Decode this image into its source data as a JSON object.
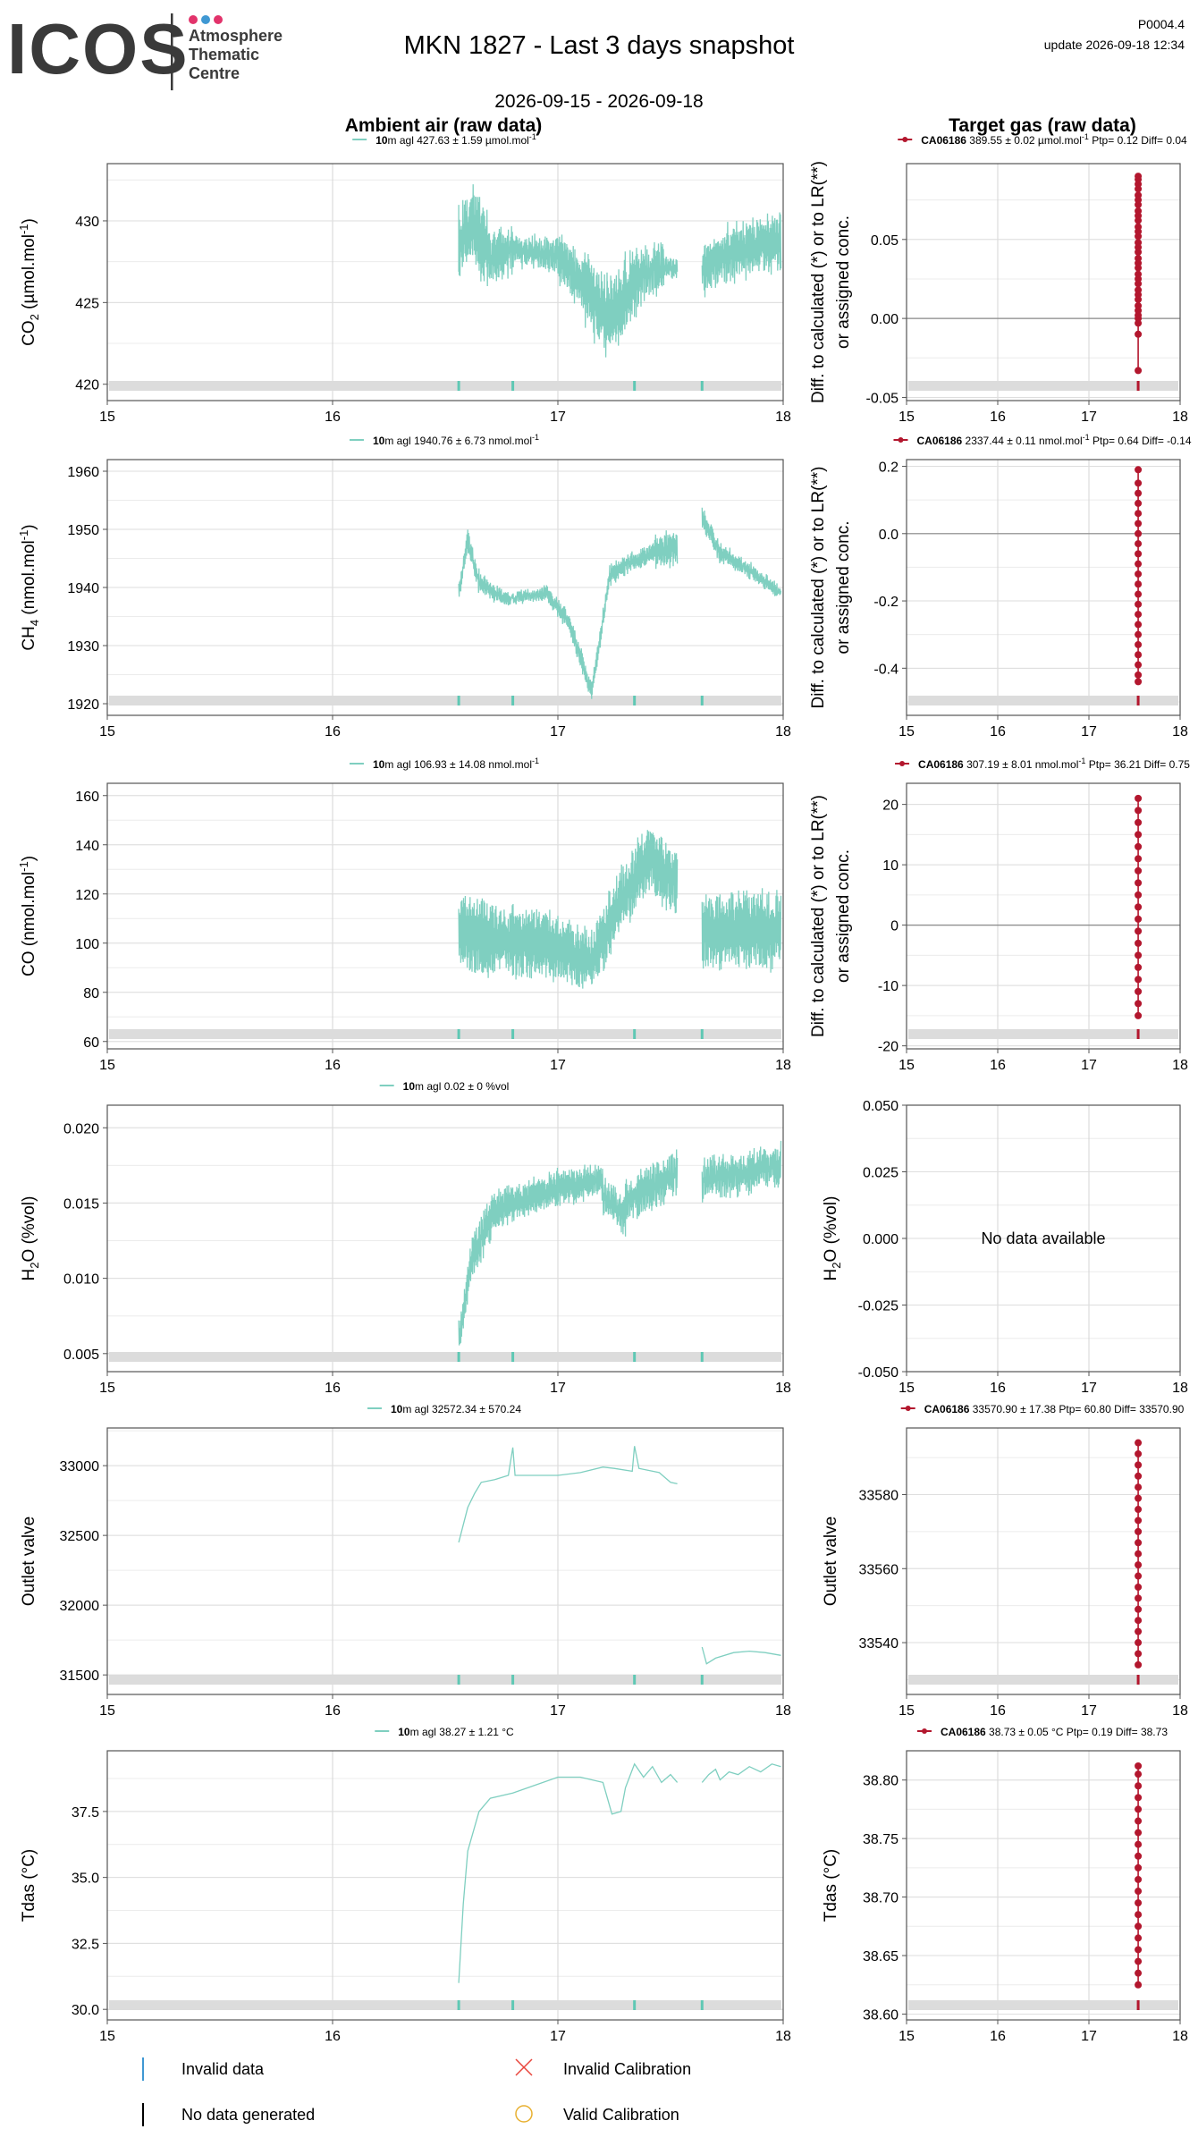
{
  "header": {
    "logo_text": "ICOS",
    "logo_subtitle": [
      "Atmosphere",
      "Thematic",
      "Centre"
    ],
    "title": "MKN 1827 - Last 3 days snapshot",
    "date_range": "2026-09-15 - 2026-09-18",
    "code": "P0004.4",
    "update": "update  2026-09-18 12:34"
  },
  "columns": {
    "left_title": "Ambient air (raw data)",
    "right_title": "Target gas (raw data)"
  },
  "colors": {
    "ambient": "#7fcfc0",
    "target": "#b3172e",
    "invalid_band": "#dcdcdc",
    "invalid_tick": "#5fc8b4",
    "invalid_calibration": "#e8453c",
    "valid_calibration": "#e8b030"
  },
  "x_axis": {
    "range": [
      15,
      18
    ],
    "ticks": [
      "15",
      "16",
      "17",
      "18"
    ]
  },
  "chart_data": [
    {
      "id": "co2-ambient",
      "type": "line",
      "ylabel": "CO2 (µmol.mol-1)",
      "ylabel_parts": [
        "CO",
        "2",
        " (µmol.mol",
        "-1",
        ")"
      ],
      "legend": {
        "bold": "10",
        "text": "m agl 427.63 ± 1.59 µmol.mol",
        "sup": "-1"
      },
      "ylim": [
        419.0,
        433.5
      ],
      "yticks": [
        420,
        425,
        430
      ],
      "ytick_labels": [
        "420",
        "425",
        "430"
      ],
      "segments": [
        [
          16.56,
          16.56,
          427.5,
          429.2,
          2.0,
          0.5,
          3
        ],
        [
          16.56,
          16.62,
          428.5,
          430.0,
          2.0,
          0.5,
          11
        ],
        [
          16.62,
          16.7,
          430.0,
          427.8,
          2.3,
          0.5,
          27
        ],
        [
          16.7,
          16.8,
          427.8,
          428.2,
          1.4,
          0.5,
          43
        ],
        [
          16.8,
          17.0,
          428.2,
          427.9,
          0.9,
          0.3,
          95
        ],
        [
          17.0,
          17.12,
          427.9,
          426.0,
          1.6,
          0.4,
          57
        ],
        [
          17.12,
          17.22,
          426.0,
          424.0,
          2.4,
          0.5,
          61
        ],
        [
          17.22,
          17.36,
          424.0,
          426.5,
          2.3,
          0.5,
          51
        ],
        [
          17.36,
          17.47,
          426.5,
          427.2,
          1.4,
          0.6,
          13
        ],
        [
          17.47,
          17.53,
          427.2,
          427.1,
          0.6,
          0.2,
          7
        ],
        [
          17.64,
          17.75,
          427.0,
          428.0,
          1.6,
          0.4,
          23
        ],
        [
          17.75,
          17.99,
          428.0,
          428.8,
          1.7,
          0.4,
          1
        ]
      ],
      "invalid_ticks": [
        16.56,
        16.8,
        17.34,
        17.64
      ]
    },
    {
      "id": "co2-target",
      "type": "scatter",
      "ylabel_lines": [
        "Diff. to calculated (*) or to LR(**)",
        "or assigned conc."
      ],
      "legend": {
        "bold": "CA06186",
        "text": " 389.55 ± 0.02 µmol.mol",
        "sup": "-1",
        "text2": " Ptp= 0.12 Diff= 0.04"
      },
      "ylim": [
        -0.052,
        0.098
      ],
      "yticks": [
        -0.05,
        0.0,
        0.05
      ],
      "ytick_labels": [
        "-0.05",
        "0.00",
        "0.05"
      ],
      "x": 17.54,
      "y_values": [
        -0.033,
        -0.01,
        -0.003,
        0.0,
        0.002,
        0.005,
        0.008,
        0.012,
        0.015,
        0.018,
        0.022,
        0.025,
        0.028,
        0.032,
        0.035,
        0.038,
        0.042,
        0.045,
        0.048,
        0.052,
        0.055,
        0.058,
        0.062,
        0.065,
        0.068,
        0.072,
        0.075,
        0.078,
        0.082,
        0.085,
        0.088,
        0.09
      ],
      "zero_line": true,
      "invalid_ticks": [
        17.54
      ]
    },
    {
      "id": "ch4-ambient",
      "type": "line",
      "ylabel": "CH4 (nmol.mol-1)",
      "ylabel_parts": [
        "CH",
        "4",
        " (nmol.mol",
        "-1",
        ")"
      ],
      "legend": {
        "bold": "10",
        "text": "m agl 1940.76 ± 6.73 nmol.mol",
        "sup": "-1"
      },
      "ylim": [
        1918.0,
        1962.0
      ],
      "yticks": [
        1920,
        1930,
        1940,
        1950,
        1960
      ],
      "ytick_labels": [
        "1920",
        "1930",
        "1940",
        "1950",
        "1960"
      ],
      "segments": [
        [
          16.56,
          16.6,
          1939.0,
          1948.0,
          1.6,
          0.5,
          5
        ],
        [
          16.6,
          16.65,
          1948.0,
          1941.0,
          1.8,
          0.6,
          9
        ],
        [
          16.65,
          16.72,
          1941.0,
          1939.0,
          1.4,
          0.5,
          15
        ],
        [
          16.72,
          16.78,
          1939.0,
          1938.0,
          1.2,
          0.4,
          19
        ],
        [
          16.78,
          16.95,
          1938.0,
          1939.0,
          1.0,
          0.5,
          31
        ],
        [
          16.95,
          17.05,
          1939.0,
          1934.0,
          1.4,
          0.5,
          37
        ],
        [
          17.05,
          17.15,
          1934.0,
          1922.0,
          1.6,
          0.5,
          43
        ],
        [
          17.15,
          17.23,
          1922.0,
          1942.0,
          1.8,
          0.5,
          49
        ],
        [
          17.23,
          17.3,
          1942.0,
          1944.0,
          1.6,
          0.5,
          55
        ],
        [
          17.3,
          17.43,
          1944.0,
          1946.0,
          1.4,
          0.5,
          61
        ],
        [
          17.43,
          17.53,
          1946.0,
          1947.0,
          3.0,
          0.8,
          67
        ],
        [
          17.64,
          17.72,
          1952.0,
          1946.0,
          1.6,
          0.6,
          73
        ],
        [
          17.72,
          17.85,
          1946.0,
          1943.0,
          1.4,
          0.5,
          79
        ],
        [
          17.85,
          17.99,
          1943.0,
          1939.0,
          1.2,
          0.5,
          85
        ]
      ],
      "invalid_ticks": [
        16.56,
        16.8,
        17.34,
        17.64
      ]
    },
    {
      "id": "ch4-target",
      "type": "scatter",
      "ylabel_lines": [
        "Diff. to calculated (*) or to LR(**)",
        "or assigned conc."
      ],
      "legend": {
        "bold": "CA06186",
        "text": " 2337.44 ± 0.11 nmol.mol",
        "sup": "-1",
        "text2": " Ptp= 0.64 Diff= -0.14"
      },
      "ylim": [
        -0.54,
        0.22
      ],
      "yticks": [
        -0.4,
        -0.2,
        0.0,
        0.2
      ],
      "ytick_labels": [
        "-0.4",
        "-0.2",
        "0.0",
        "0.2"
      ],
      "x": 17.54,
      "y_values": [
        -0.44,
        -0.42,
        -0.39,
        -0.36,
        -0.33,
        -0.3,
        -0.27,
        -0.24,
        -0.21,
        -0.18,
        -0.15,
        -0.12,
        -0.09,
        -0.06,
        -0.03,
        0.0,
        0.03,
        0.06,
        0.09,
        0.12,
        0.15,
        0.19
      ],
      "zero_line": true,
      "invalid_ticks": [
        17.54
      ]
    },
    {
      "id": "co-ambient",
      "type": "line",
      "ylabel": "CO (nmol.mol-1)",
      "ylabel_parts": [
        "CO",
        "",
        " (nmol.mol",
        "-1",
        ")"
      ],
      "legend": {
        "bold": "10",
        "text": "m agl 106.93 ± 14.08 nmol.mol",
        "sup": "-1"
      },
      "ylim": [
        57.0,
        165.0
      ],
      "yticks": [
        60,
        80,
        100,
        120,
        140,
        160
      ],
      "ytick_labels": [
        "60",
        "80",
        "100",
        "120",
        "140",
        "160"
      ],
      "segments": [
        [
          16.56,
          16.7,
          104.0,
          102.0,
          16.0,
          2.0,
          5
        ],
        [
          16.7,
          17.0,
          102.0,
          98.0,
          14.0,
          2.0,
          9
        ],
        [
          17.0,
          17.15,
          98.0,
          92.0,
          12.0,
          2.0,
          15
        ],
        [
          17.15,
          17.25,
          92.0,
          112.0,
          13.0,
          2.0,
          19
        ],
        [
          17.25,
          17.4,
          112.0,
          135.0,
          13.0,
          3.0,
          31
        ],
        [
          17.4,
          17.53,
          135.0,
          125.0,
          14.0,
          3.0,
          37
        ],
        [
          17.64,
          17.99,
          105.0,
          105.0,
          16.0,
          2.0,
          43
        ]
      ],
      "invalid_ticks": [
        16.56,
        16.8,
        17.34,
        17.64
      ]
    },
    {
      "id": "co-target",
      "type": "scatter",
      "ylabel_lines": [
        "Diff. to calculated (*) or to LR(**)",
        "or assigned conc."
      ],
      "legend": {
        "bold": "CA06186",
        "text": " 307.19 ± 8.01 nmol.mol",
        "sup": "-1",
        "text2": " Ptp= 36.21 Diff= 0.75"
      },
      "ylim": [
        -20.5,
        23.5
      ],
      "yticks": [
        -20,
        -10,
        0,
        10,
        20
      ],
      "ytick_labels": [
        "-20",
        "-10",
        "0",
        "10",
        "20"
      ],
      "x": 17.54,
      "y_values": [
        -15.0,
        -13.0,
        -11.0,
        -9.0,
        -7.0,
        -5.0,
        -3.0,
        -1.0,
        1.0,
        3.0,
        5.0,
        7.0,
        9.0,
        11.0,
        13.0,
        15.0,
        17.0,
        19.0,
        21.0
      ],
      "zero_line": true,
      "invalid_ticks": [
        17.54
      ]
    },
    {
      "id": "h2o-ambient",
      "type": "line",
      "ylabel": "H2O (%vol)",
      "ylabel_parts": [
        "H",
        "2",
        "O (%vol)",
        "",
        ""
      ],
      "legend": {
        "bold": "10",
        "text": "m agl 0.02 ± 0 %vol",
        "sup": ""
      },
      "ylim": [
        0.0038,
        0.0215
      ],
      "yticks": [
        0.005,
        0.01,
        0.015,
        0.02
      ],
      "ytick_labels": [
        "0.005",
        "0.010",
        "0.015",
        "0.020"
      ],
      "segments": [
        [
          16.56,
          16.62,
          0.006,
          0.0115,
          0.0012,
          0.0003,
          3
        ],
        [
          16.62,
          16.72,
          0.0115,
          0.0145,
          0.0014,
          0.0003,
          11
        ],
        [
          16.72,
          17.0,
          0.0145,
          0.016,
          0.0012,
          0.0003,
          27
        ],
        [
          17.0,
          17.2,
          0.016,
          0.0165,
          0.0011,
          0.0003,
          43
        ],
        [
          17.2,
          17.3,
          0.0155,
          0.014,
          0.0012,
          0.0003,
          95
        ],
        [
          17.3,
          17.53,
          0.015,
          0.017,
          0.0014,
          0.0004,
          57
        ],
        [
          17.64,
          17.99,
          0.0165,
          0.0175,
          0.0013,
          0.0004,
          61
        ]
      ],
      "invalid_ticks": [
        16.56,
        16.8,
        17.34,
        17.64
      ]
    },
    {
      "id": "h2o-target",
      "type": "empty",
      "ylabel_parts": [
        "H",
        "2",
        "O (%vol)",
        "",
        ""
      ],
      "message": "No data available",
      "ylim": [
        -0.05,
        0.05
      ],
      "yticks": [
        -0.05,
        -0.025,
        0.0,
        0.025,
        0.05
      ],
      "ytick_labels": [
        "-0.050",
        "-0.025",
        "0.000",
        "0.025",
        "0.050"
      ]
    },
    {
      "id": "outlet-ambient",
      "type": "line",
      "ylabel": "Outlet valve",
      "legend": {
        "bold": "10",
        "text": "m agl 32572.34 ± 570.24",
        "sup": ""
      },
      "ylim": [
        31360.0,
        33270.0
      ],
      "yticks": [
        31500,
        32000,
        32500,
        33000
      ],
      "ytick_labels": [
        "31500",
        "32000",
        "32500",
        "33000"
      ],
      "points": [
        [
          16.56,
          32450
        ],
        [
          16.6,
          32700
        ],
        [
          16.63,
          32800
        ],
        [
          16.66,
          32880
        ],
        [
          16.72,
          32900
        ],
        [
          16.78,
          32930
        ],
        [
          16.8,
          33130
        ],
        [
          16.81,
          32930
        ],
        [
          16.9,
          32930
        ],
        [
          17.0,
          32930
        ],
        [
          17.1,
          32950
        ],
        [
          17.2,
          32990
        ],
        [
          17.25,
          32980
        ],
        [
          17.33,
          32960
        ],
        [
          17.34,
          33140
        ],
        [
          17.36,
          32980
        ],
        [
          17.45,
          32950
        ],
        [
          17.5,
          32880
        ],
        [
          17.53,
          32870
        ],
        [
          null,
          null
        ],
        [
          17.64,
          31700
        ],
        [
          17.66,
          31580
        ],
        [
          17.7,
          31620
        ],
        [
          17.78,
          31660
        ],
        [
          17.85,
          31670
        ],
        [
          17.92,
          31660
        ],
        [
          17.99,
          31640
        ]
      ],
      "invalid_ticks": [
        16.56,
        16.8,
        17.34,
        17.64
      ]
    },
    {
      "id": "outlet-target",
      "type": "scatter",
      "ylabel": "Outlet valve",
      "legend": {
        "bold": "CA06186",
        "text": " 33570.90 ± 17.38  Ptp= 60.80 Diff= 33570.90",
        "sup": "",
        "text2": ""
      },
      "ylim": [
        33526.0,
        33598.0
      ],
      "yticks": [
        33540,
        33560,
        33580
      ],
      "ytick_labels": [
        "33540",
        "33560",
        "33580"
      ],
      "x": 17.54,
      "y_values": [
        33534.0,
        33537.0,
        33540.0,
        33543.0,
        33546.0,
        33549.0,
        33552.0,
        33555.0,
        33558.0,
        33561.0,
        33564.0,
        33567.0,
        33570.0,
        33573.0,
        33576.0,
        33579.0,
        33582.0,
        33585.0,
        33588.0,
        33591.0,
        33594.0
      ],
      "zero_line": false,
      "invalid_ticks": [
        17.54
      ]
    },
    {
      "id": "tdas-ambient",
      "type": "line",
      "ylabel": "Tdas (°C)",
      "legend": {
        "bold": "10",
        "text": "m agl 38.27 ± 1.21 °C",
        "sup": ""
      },
      "ylim": [
        29.6,
        39.8
      ],
      "yticks": [
        30,
        32.5,
        35,
        37.5
      ],
      "ytick_labels": [
        "30.0",
        "32.5",
        "35.0",
        "37.5"
      ],
      "points": [
        [
          16.56,
          31.0
        ],
        [
          16.58,
          34.0
        ],
        [
          16.6,
          36.0
        ],
        [
          16.65,
          37.5
        ],
        [
          16.7,
          38.0
        ],
        [
          16.8,
          38.2
        ],
        [
          16.9,
          38.5
        ],
        [
          17.0,
          38.8
        ],
        [
          17.1,
          38.8
        ],
        [
          17.2,
          38.6
        ],
        [
          17.24,
          37.4
        ],
        [
          17.28,
          37.5
        ],
        [
          17.3,
          38.4
        ],
        [
          17.34,
          39.3
        ],
        [
          17.38,
          38.8
        ],
        [
          17.42,
          39.2
        ],
        [
          17.46,
          38.6
        ],
        [
          17.5,
          38.9
        ],
        [
          17.53,
          38.6
        ],
        [
          null,
          null
        ],
        [
          17.64,
          38.6
        ],
        [
          17.67,
          38.9
        ],
        [
          17.7,
          39.1
        ],
        [
          17.72,
          38.7
        ],
        [
          17.76,
          39.0
        ],
        [
          17.8,
          38.9
        ],
        [
          17.85,
          39.2
        ],
        [
          17.9,
          39.0
        ],
        [
          17.95,
          39.3
        ],
        [
          17.99,
          39.2
        ]
      ],
      "invalid_ticks": [
        16.56,
        16.8,
        17.34,
        17.64
      ]
    },
    {
      "id": "tdas-target",
      "type": "scatter",
      "ylabel": "Tdas (°C)",
      "legend": {
        "bold": "CA06186",
        "text": " 38.73 ± 0.05 °C Ptp= 0.19 Diff= 38.73",
        "sup": "",
        "text2": ""
      },
      "ylim": [
        38.595,
        38.825
      ],
      "yticks": [
        38.6,
        38.65,
        38.7,
        38.75,
        38.8
      ],
      "ytick_labels": [
        "38.60",
        "38.65",
        "38.70",
        "38.75",
        "38.80"
      ],
      "x": 17.54,
      "y_values": [
        38.625,
        38.635,
        38.645,
        38.655,
        38.665,
        38.675,
        38.685,
        38.695,
        38.705,
        38.715,
        38.725,
        38.735,
        38.745,
        38.755,
        38.765,
        38.775,
        38.785,
        38.795,
        38.805,
        38.812
      ],
      "zero_line": false,
      "invalid_ticks": [
        17.54
      ]
    }
  ],
  "legend_footer": {
    "invalid_data": "Invalid data",
    "no_data": "No data generated",
    "invalid_calibration": "Invalid Calibration",
    "valid_calibration": "Valid Calibration"
  }
}
